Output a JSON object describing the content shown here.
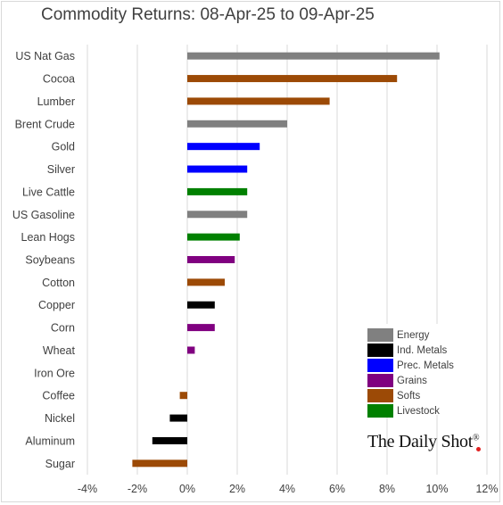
{
  "chart_data": {
    "type": "bar",
    "orientation": "horizontal",
    "title": "Commodity Returns: 08-Apr-25 to 09-Apr-25",
    "categories": [
      "US Nat Gas",
      "Cocoa",
      "Lumber",
      "Brent Crude",
      "Gold",
      "Silver",
      "Live Cattle",
      "US Gasoline",
      "Lean Hogs",
      "Soybeans",
      "Cotton",
      "Copper",
      "Corn",
      "Wheat",
      "Iron Ore",
      "Coffee",
      "Nickel",
      "Aluminum",
      "Sugar"
    ],
    "values": [
      10.1,
      8.4,
      5.7,
      4.0,
      2.9,
      2.4,
      2.4,
      2.4,
      2.1,
      1.9,
      1.5,
      1.1,
      1.1,
      0.3,
      0.0,
      -0.3,
      -0.7,
      -1.4,
      -2.2
    ],
    "groups": [
      "Energy",
      "Softs",
      "Softs",
      "Energy",
      "Prec. Metals",
      "Prec. Metals",
      "Livestock",
      "Energy",
      "Livestock",
      "Grains",
      "Softs",
      "Ind. Metals",
      "Grains",
      "Grains",
      "Ind. Metals",
      "Softs",
      "Ind. Metals",
      "Ind. Metals",
      "Softs"
    ],
    "xlim": [
      -4,
      12
    ],
    "xticks": [
      -4,
      -2,
      0,
      2,
      4,
      6,
      8,
      10,
      12
    ],
    "xtick_labels": [
      "-4%",
      "-2%",
      "0%",
      "2%",
      "4%",
      "6%",
      "8%",
      "10%",
      "12%"
    ],
    "grid": "vertical",
    "legend_position": "bottom-right",
    "legend": [
      {
        "name": "Energy",
        "color": "#808080"
      },
      {
        "name": "Ind. Metals",
        "color": "#000000"
      },
      {
        "name": "Prec. Metals",
        "color": "#0000ff"
      },
      {
        "name": "Grains",
        "color": "#800080"
      },
      {
        "name": "Softs",
        "color": "#9c4a06"
      },
      {
        "name": "Livestock",
        "color": "#008000"
      }
    ]
  },
  "brand": {
    "name": "The Daily Shot",
    "mark": "®"
  }
}
